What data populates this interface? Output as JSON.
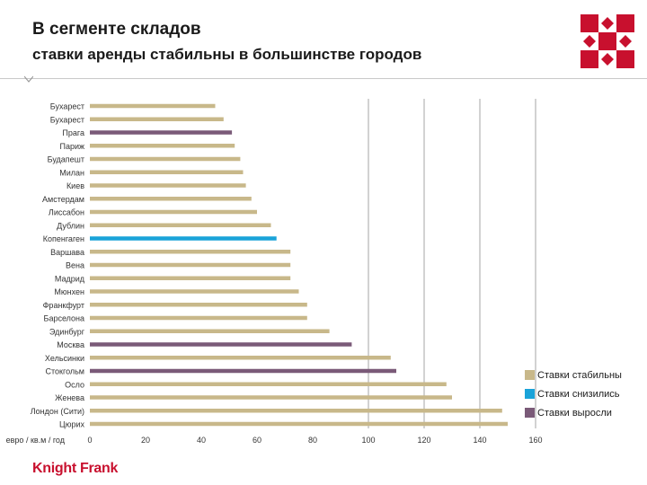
{
  "header": {
    "title": "В сегменте складов",
    "subtitle": "ставки аренды стабильны в большинстве городов"
  },
  "brand": {
    "name": "Knight Frank",
    "color": "#c8102e"
  },
  "colors": {
    "stable": "#c8b88a",
    "decreased": "#1aa3d9",
    "increased": "#7a5a78",
    "gridline": "#a6a6a6",
    "logo": "#c8102e"
  },
  "legend": [
    {
      "key": "stable",
      "label": "Ставки стабильны"
    },
    {
      "key": "decreased",
      "label": "Ставки снизились"
    },
    {
      "key": "increased",
      "label": "Ставки выросли"
    }
  ],
  "chart_data": {
    "type": "bar",
    "orientation": "horizontal",
    "xlabel": "евро / кв.м / год",
    "xlim": [
      0,
      160
    ],
    "xticks": [
      0,
      20,
      40,
      60,
      80,
      100,
      120,
      140,
      160
    ],
    "grid": "vertical",
    "legend_position": "bottom-right",
    "categories": [
      "Бухарест",
      "Бухарест",
      "Прага",
      "Париж",
      "Будапешт",
      "Милан",
      "Киев",
      "Амстердам",
      "Лиссабон",
      "Дублин",
      "Копенгаген",
      "Варшава",
      "Вена",
      "Мадрид",
      "Мюнхен",
      "Франкфурт",
      "Барселона",
      "Эдинбург",
      "Москва",
      "Хельсинки",
      "Стокгольм",
      "Осло",
      "Женева",
      "Лондон (Сити)",
      "Цюрих"
    ],
    "values": [
      45,
      48,
      51,
      52,
      54,
      55,
      56,
      58,
      60,
      65,
      67,
      72,
      72,
      72,
      75,
      78,
      78,
      86,
      94,
      108,
      110,
      128,
      130,
      148,
      150
    ],
    "status": [
      "stable",
      "stable",
      "increased",
      "stable",
      "stable",
      "stable",
      "stable",
      "stable",
      "stable",
      "stable",
      "decreased",
      "stable",
      "stable",
      "stable",
      "stable",
      "stable",
      "stable",
      "stable",
      "increased",
      "stable",
      "increased",
      "stable",
      "stable",
      "stable",
      "stable"
    ]
  }
}
